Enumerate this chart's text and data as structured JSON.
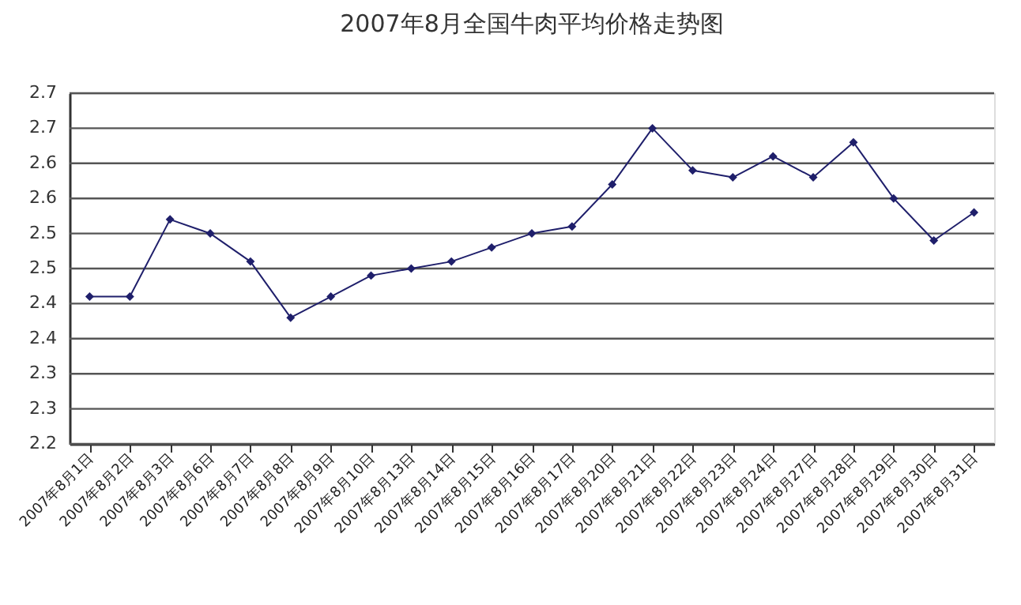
{
  "chart_data": {
    "type": "line",
    "title": "2007年8月全国牛肉平均价格走势图",
    "categories": [
      "2007年8月1日",
      "2007年8月2日",
      "2007年8月3日",
      "2007年8月6日",
      "2007年8月7日",
      "2007年8月8日",
      "2007年8月9日",
      "2007年8月10日",
      "2007年8月13日",
      "2007年8月14日",
      "2007年8月15日",
      "2007年8月16日",
      "2007年8月17日",
      "2007年8月20日",
      "2007年8月21日",
      "2007年8月22日",
      "2007年8月23日",
      "2007年8月24日",
      "2007年8月27日",
      "2007年8月28日",
      "2007年8月29日",
      "2007年8月30日",
      "2007年8月31日"
    ],
    "series": [
      {
        "color": "#1f1f6b",
        "values": [
          2.41,
          2.41,
          2.52,
          2.5,
          2.46,
          2.38,
          2.41,
          2.44,
          2.45,
          2.46,
          2.48,
          2.5,
          2.51,
          2.57,
          2.65,
          2.59,
          2.58,
          2.61,
          2.58,
          2.63,
          2.55,
          2.49,
          2.53
        ]
      }
    ],
    "ylim": [
      2.2,
      2.7
    ],
    "yticks": [
      {
        "value": 2.2,
        "label": "2.2"
      },
      {
        "value": 2.25,
        "label": "2.3"
      },
      {
        "value": 2.3,
        "label": "2.3"
      },
      {
        "value": 2.35,
        "label": "2.4"
      },
      {
        "value": 2.4,
        "label": "2.4"
      },
      {
        "value": 2.45,
        "label": "2.5"
      },
      {
        "value": 2.5,
        "label": "2.5"
      },
      {
        "value": 2.55,
        "label": "2.6"
      },
      {
        "value": 2.6,
        "label": "2.6"
      },
      {
        "value": 2.65,
        "label": "2.7"
      },
      {
        "value": 2.7,
        "label": "2.7"
      }
    ],
    "grid": "y",
    "marker": "diamond",
    "line_style": "solid"
  }
}
